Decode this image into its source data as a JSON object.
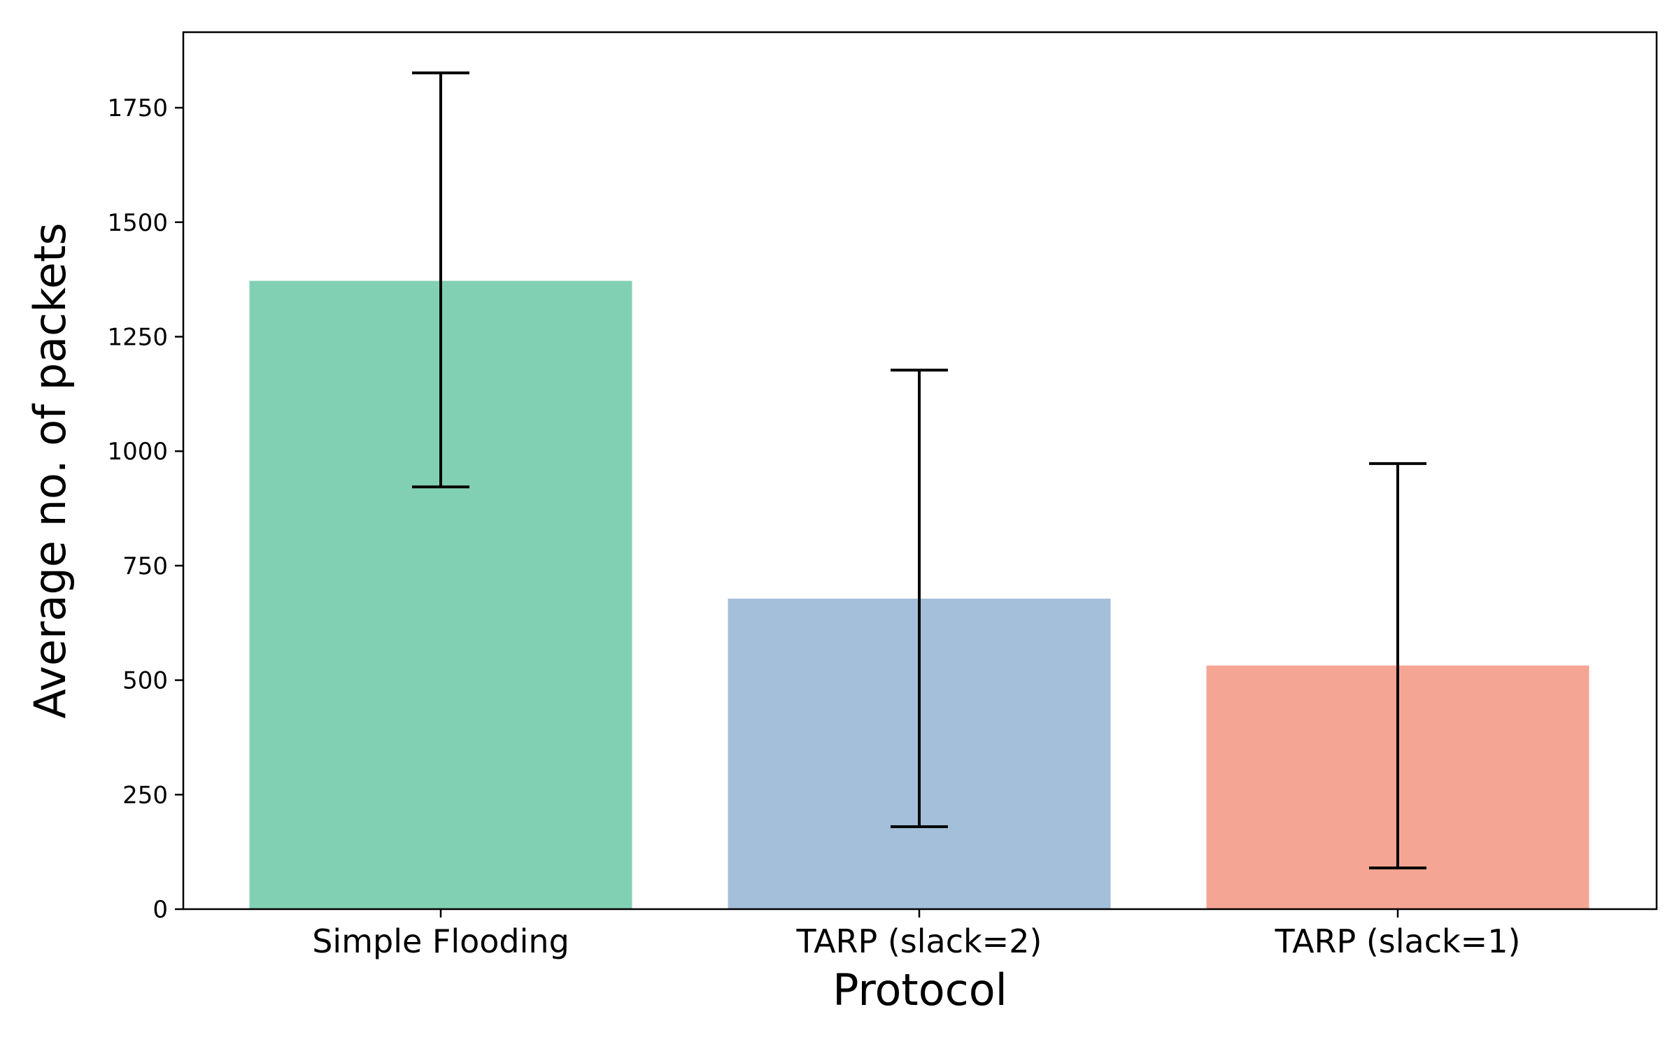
{
  "chart_data": {
    "type": "bar",
    "title": "",
    "xlabel": "Protocol",
    "ylabel": "Average no. of packets",
    "categories": [
      "Simple Flooding",
      "TARP (slack=2)",
      "TARP (slack=1)"
    ],
    "values": [
      1372,
      678,
      532
    ],
    "error_low": [
      922,
      180,
      90
    ],
    "error_high": [
      1826,
      1177,
      973
    ],
    "colors": [
      "#82d0b4",
      "#a4bfda",
      "#f5a594"
    ],
    "ylim": [
      0,
      1915
    ],
    "yticks": [
      0,
      250,
      500,
      750,
      1000,
      1250,
      1500,
      1750
    ],
    "ytick_labels": [
      "0",
      "250",
      "500",
      "750",
      "1000",
      "1250",
      "1500",
      "1750"
    ],
    "grid": false,
    "legend": false
  }
}
